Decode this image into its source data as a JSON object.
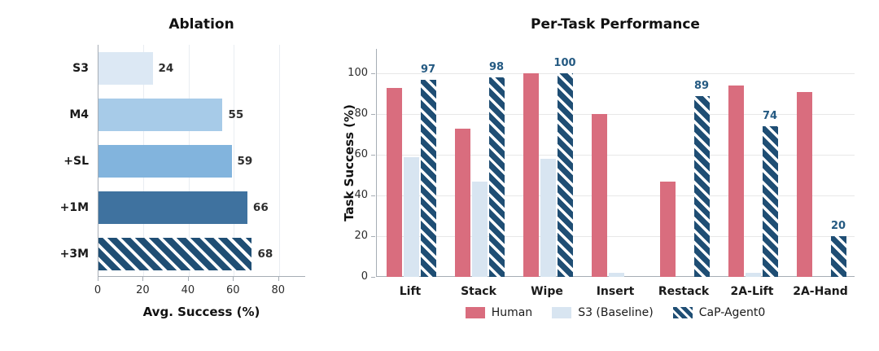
{
  "chart_data": [
    {
      "type": "bar",
      "orientation": "horizontal",
      "title": "Ablation",
      "xlabel": "Avg. Success (%)",
      "categories": [
        "S3",
        "M4",
        "+SL",
        "+1M",
        "+3M"
      ],
      "values": [
        24,
        55,
        59,
        66,
        68
      ],
      "bar_colors": [
        "#dce8f4",
        "#a7cbe8",
        "#82b4dd",
        "#3f729f",
        "#1f4e74"
      ],
      "hatched_bars": [
        "+3M"
      ],
      "value_labels": [
        24,
        55,
        59,
        66,
        68
      ],
      "xticks": [
        0,
        20,
        40,
        60,
        80
      ],
      "xlim": [
        0,
        92
      ],
      "grid": "vertical",
      "legend_position": "none"
    },
    {
      "type": "bar",
      "orientation": "vertical",
      "title": "Per-Task Performance",
      "ylabel": "Task Success (%)",
      "categories": [
        "Lift",
        "Stack",
        "Wipe",
        "Insert",
        "Restack",
        "2A-Lift",
        "2A-Hand"
      ],
      "series": [
        {
          "name": "Human",
          "color": "#d96d7e",
          "hatch": false,
          "values": [
            93,
            73,
            100,
            80,
            47,
            94,
            91
          ],
          "bar_labels": [
            null,
            null,
            null,
            null,
            null,
            null,
            null
          ]
        },
        {
          "name": "S3 (Baseline)",
          "color": "#d8e5f1",
          "hatch": false,
          "values": [
            59,
            47,
            58,
            2,
            0,
            2,
            0
          ],
          "bar_labels": [
            null,
            null,
            null,
            null,
            null,
            null,
            null
          ]
        },
        {
          "name": "CaP-Agent0",
          "color": "#1f4e74",
          "hatch": true,
          "values": [
            97,
            98,
            100,
            0,
            89,
            74,
            20
          ],
          "bar_labels": [
            97,
            98,
            100,
            null,
            89,
            74,
            20
          ]
        }
      ],
      "yticks": [
        0,
        20,
        40,
        60,
        80,
        100
      ],
      "ylim": [
        0,
        112
      ],
      "grid": "horizontal",
      "legend_position": "bottom",
      "label_color": "#255a82"
    }
  ]
}
